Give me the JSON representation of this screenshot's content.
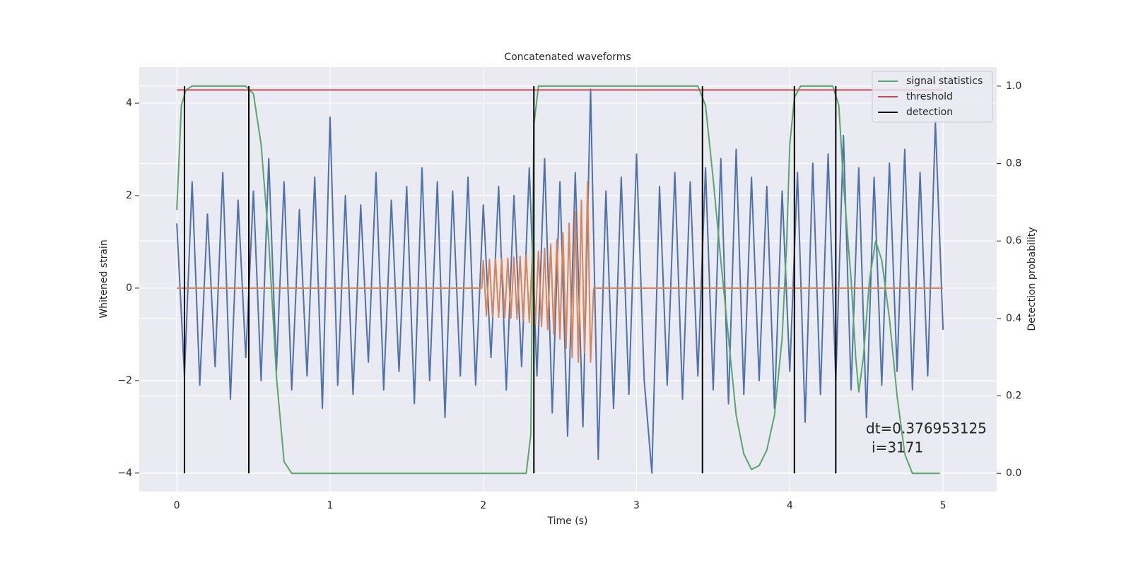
{
  "chart_data": {
    "type": "line",
    "title": "Concatenated waveforms",
    "xlabel": "Time (s)",
    "ylabel": "Whitened strain",
    "y2label": "Detection probability",
    "annotation": [
      "dt=0.376953125",
      "i=3171"
    ],
    "xlim": [
      -0.245,
      5.35
    ],
    "ylim": [
      -4.4,
      4.78
    ],
    "y2lim": [
      -0.047,
      1.049
    ],
    "xticks": [
      0,
      1,
      2,
      3,
      4,
      5
    ],
    "yticks": [
      {
        "value": -4,
        "label": "−4"
      },
      {
        "value": -2,
        "label": "−2"
      },
      0,
      2,
      4
    ],
    "y2ticks": [
      {
        "value": 0,
        "label": "0.0"
      },
      {
        "value": 0.2,
        "label": "0.2"
      },
      {
        "value": 0.4,
        "label": "0.4"
      },
      {
        "value": 0.6,
        "label": "0.6"
      },
      {
        "value": 0.8,
        "label": "0.8"
      },
      {
        "value": 1,
        "label": "1.0"
      }
    ],
    "grid": true,
    "legend": "upper right",
    "series": [
      {
        "color": "#4c72b0",
        "x": [
          0,
          0.05,
          0.1,
          0.15,
          0.2,
          0.25,
          0.3,
          0.35,
          0.4,
          0.45,
          0.5,
          0.55,
          0.6,
          0.65,
          0.7,
          0.75,
          0.8,
          0.85,
          0.9,
          0.95,
          1.0,
          1.05,
          1.1,
          1.15,
          1.2,
          1.25,
          1.3,
          1.35,
          1.4,
          1.45,
          1.5,
          1.55,
          1.6,
          1.65,
          1.7,
          1.75,
          1.8,
          1.85,
          1.9,
          1.95,
          2.0,
          2.05,
          2.1,
          2.15,
          2.2,
          2.25,
          2.3,
          2.35,
          2.4,
          2.45,
          2.5,
          2.55,
          2.6,
          2.65,
          2.7,
          2.75,
          2.8,
          2.85,
          2.9,
          2.95,
          3.0,
          3.05,
          3.1,
          3.15,
          3.2,
          3.25,
          3.3,
          3.35,
          3.4,
          3.45,
          3.5,
          3.55,
          3.6,
          3.65,
          3.7,
          3.75,
          3.8,
          3.85,
          3.9,
          3.95,
          4.0,
          4.05,
          4.1,
          4.15,
          4.2,
          4.25,
          4.3,
          4.35,
          4.4,
          4.45,
          4.5,
          4.55,
          4.6,
          4.65,
          4.7,
          4.75,
          4.8,
          4.85,
          4.9,
          4.95,
          5.0
        ],
        "values": [
          1.4,
          -1.9,
          2.3,
          -2.1,
          1.6,
          -1.7,
          2.5,
          -2.4,
          1.9,
          -1.5,
          2.1,
          -2.0,
          2.8,
          -1.8,
          2.3,
          -2.2,
          1.7,
          -1.9,
          2.4,
          -2.6,
          3.7,
          -2.1,
          2.0,
          -2.3,
          1.8,
          -1.6,
          2.5,
          -2.2,
          1.9,
          -1.8,
          2.2,
          -2.5,
          2.6,
          -2.0,
          2.3,
          -2.8,
          2.1,
          -1.9,
          2.4,
          -2.1,
          1.8,
          -1.5,
          2.2,
          -2.2,
          2.0,
          -1.7,
          2.6,
          -1.9,
          2.8,
          -2.7,
          2.3,
          -3.2,
          2.5,
          -3.0,
          4.3,
          -3.7,
          2.1,
          -2.6,
          2.4,
          -2.3,
          2.9,
          -2.0,
          -4.0,
          2.2,
          -2.1,
          2.5,
          -2.4,
          2.3,
          -1.9,
          2.6,
          -2.2,
          2.8,
          -2.5,
          3.0,
          -2.3,
          2.4,
          -2.0,
          2.2,
          -2.6,
          2.1,
          -1.8,
          2.5,
          -2.9,
          2.7,
          -2.3,
          2.9,
          -2.0,
          3.3,
          -2.2,
          2.6,
          -2.8,
          2.4,
          -2.1,
          2.7,
          -1.8,
          3.0,
          -2.2,
          2.5,
          -1.9,
          3.6,
          -0.9
        ]
      },
      {
        "color": "#dd8452",
        "x": [
          0,
          1.99,
          2.0,
          2.02,
          2.04,
          2.06,
          2.08,
          2.1,
          2.12,
          2.14,
          2.16,
          2.18,
          2.2,
          2.22,
          2.24,
          2.26,
          2.28,
          2.3,
          2.32,
          2.34,
          2.36,
          2.38,
          2.4,
          2.42,
          2.44,
          2.46,
          2.48,
          2.5,
          2.52,
          2.54,
          2.56,
          2.58,
          2.6,
          2.62,
          2.64,
          2.66,
          2.68,
          2.7,
          2.72,
          5.0
        ],
        "values": [
          0,
          0,
          0.6,
          -0.6,
          0.62,
          -0.62,
          0.63,
          -0.63,
          0.64,
          -0.64,
          0.65,
          -0.65,
          0.67,
          -0.67,
          0.69,
          -0.7,
          0.72,
          -0.74,
          0.76,
          -0.78,
          0.8,
          -0.83,
          0.86,
          -0.9,
          0.95,
          -1.0,
          1.05,
          -1.1,
          1.2,
          -1.3,
          1.4,
          -1.5,
          1.65,
          -1.6,
          1.9,
          -1.4,
          2.3,
          -1.6,
          0,
          0
        ]
      },
      {
        "name": "signal statistics",
        "color": "#55a868",
        "axis": "y2",
        "x": [
          0,
          0.03,
          0.06,
          0.1,
          0.45,
          0.5,
          0.55,
          0.6,
          0.65,
          0.7,
          0.75,
          0.9,
          2.28,
          2.31,
          2.33,
          2.36,
          3.4,
          3.45,
          3.5,
          3.55,
          3.6,
          3.65,
          3.7,
          3.75,
          3.8,
          3.85,
          3.9,
          3.95,
          3.98,
          4.0,
          4.03,
          4.07,
          4.28,
          4.32,
          4.35,
          4.4,
          4.43,
          4.45,
          4.48,
          4.52,
          4.56,
          4.6,
          4.65,
          4.7,
          4.75,
          4.8,
          4.98
        ],
        "values": [
          0.68,
          0.95,
          0.99,
          1.0,
          1.0,
          0.98,
          0.85,
          0.6,
          0.25,
          0.03,
          0.0,
          0.0,
          0.0,
          0.1,
          0.9,
          1.0,
          1.0,
          0.95,
          0.76,
          0.55,
          0.35,
          0.15,
          0.05,
          0.01,
          0.02,
          0.06,
          0.15,
          0.35,
          0.6,
          0.85,
          0.97,
          1.0,
          1.0,
          0.95,
          0.75,
          0.5,
          0.3,
          0.21,
          0.3,
          0.5,
          0.6,
          0.55,
          0.4,
          0.2,
          0.05,
          0.0,
          0.0
        ]
      },
      {
        "name": "threshold",
        "color": "#c44e52",
        "axis": "y2",
        "x": [
          0,
          5
        ],
        "values": [
          0.99,
          0.99
        ]
      },
      {
        "name": "detection",
        "color": "#000000",
        "axis": "y2",
        "kind": "vline",
        "x": [
          0.05,
          0.47,
          2.33,
          3.43,
          4.03,
          4.3
        ],
        "values": [
          1,
          1,
          1,
          1,
          1,
          1
        ]
      }
    ]
  }
}
